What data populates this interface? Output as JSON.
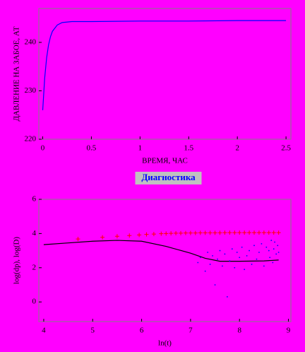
{
  "chart_data": [
    {
      "type": "line",
      "xlabel": "ВРЕМЯ, ЧАС",
      "ylabel": "ДАВЛЕНИЕ НА ЗАБОЕ, АТ",
      "xlim": [
        -0.04,
        2.55
      ],
      "ylim": [
        220,
        247
      ],
      "xticks": [
        0,
        0.5,
        1,
        1.5,
        2,
        2.5
      ],
      "yticks": [
        220,
        230,
        240
      ],
      "series": [
        {
          "type": "line",
          "color": "#0000ff",
          "x": [
            0,
            0.02,
            0.04,
            0.06,
            0.08,
            0.1,
            0.15,
            0.2,
            0.3,
            0.5,
            1,
            1.5,
            2,
            2.5
          ],
          "values": [
            226.0,
            232.6,
            236.8,
            239.5,
            241.2,
            242.3,
            243.6,
            244.1,
            244.3,
            244.3,
            244.4,
            244.4,
            244.5,
            244.5
          ]
        }
      ]
    },
    {
      "type": "line",
      "title": "Диагностика",
      "xlabel": "ln(t)",
      "ylabel": "log(dp), log(D)",
      "xlim": [
        3.9,
        9.05
      ],
      "ylim": [
        -1.15,
        6
      ],
      "xticks": [
        4,
        5,
        6,
        7,
        8,
        9
      ],
      "yticks": [
        0,
        2,
        4,
        6
      ],
      "series": [
        {
          "type": "line",
          "color": "#000000",
          "x": [
            4,
            4.5,
            5,
            5.5,
            6,
            6.5,
            7,
            7.3,
            7.6,
            8,
            8.5,
            8.8
          ],
          "values": [
            3.35,
            3.45,
            3.55,
            3.6,
            3.55,
            3.25,
            2.85,
            2.55,
            2.38,
            2.38,
            2.4,
            2.45
          ]
        },
        {
          "type": "plus",
          "color": "#ff0000",
          "x": [
            4.7,
            5.2,
            5.5,
            5.75,
            5.95,
            6.1,
            6.25,
            6.4,
            6.5,
            6.6,
            6.7,
            6.8,
            6.9,
            7.0,
            7.1,
            7.2,
            7.3,
            7.4,
            7.5,
            7.6,
            7.7,
            7.8,
            7.9,
            8.0,
            8.1,
            8.2,
            8.3,
            8.4,
            8.5,
            8.6,
            8.7,
            8.8
          ],
          "values": [
            3.68,
            3.78,
            3.84,
            3.88,
            3.92,
            3.95,
            3.97,
            3.99,
            4.0,
            4.01,
            4.02,
            4.02,
            4.03,
            4.03,
            4.03,
            4.04,
            4.04,
            4.04,
            4.04,
            4.04,
            4.05,
            4.05,
            4.05,
            4.05,
            4.05,
            4.05,
            4.05,
            4.05,
            4.05,
            4.05,
            4.05,
            4.05
          ]
        },
        {
          "type": "dot",
          "color": "#0000ff",
          "x": [
            7.15,
            7.2,
            7.3,
            7.35,
            7.4,
            7.45,
            7.5,
            7.55,
            7.6,
            7.65,
            7.7,
            7.75,
            7.8,
            7.85,
            7.9,
            7.95,
            8.0,
            8.05,
            8.1,
            8.15,
            8.2,
            8.25,
            8.3,
            8.35,
            8.4,
            8.45,
            8.5,
            8.55,
            8.6,
            8.62,
            8.65,
            8.68,
            8.7,
            8.72,
            8.75,
            8.78,
            8.8
          ],
          "values": [
            2.3,
            2.6,
            1.8,
            2.9,
            2.2,
            2.7,
            1.0,
            2.5,
            3.0,
            2.1,
            2.8,
            0.3,
            2.4,
            3.1,
            2.0,
            2.9,
            2.6,
            3.2,
            1.9,
            2.7,
            3.0,
            2.2,
            3.3,
            2.5,
            2.9,
            3.4,
            2.1,
            3.2,
            3.0,
            2.6,
            3.6,
            2.3,
            3.1,
            3.5,
            2.8,
            3.3,
            2.9
          ]
        }
      ]
    }
  ]
}
